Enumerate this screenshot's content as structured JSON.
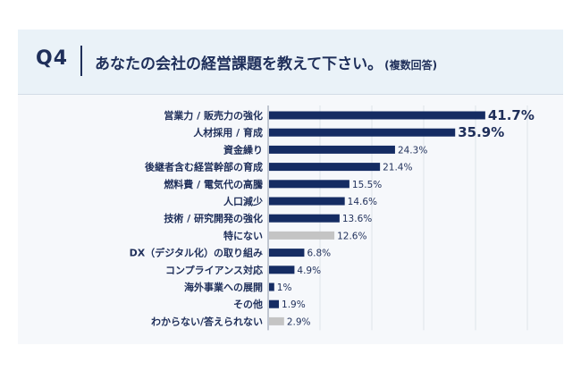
{
  "question": {
    "number": "Q4",
    "title": "あなたの会社の経営課題を教えて下さい。",
    "note": "(複数回答)"
  },
  "colors": {
    "navy": "#152c63",
    "gray": "#c4c4c4"
  },
  "chart_data": {
    "type": "bar",
    "orientation": "horizontal",
    "categories": [
      "営業力 / 販売力の強化",
      "人材採用 / 育成",
      "資金繰り",
      "後継者含む経営幹部の育成",
      "燃料費 / 電気代の高騰",
      "人口減少",
      "技術 / 研究開発の強化",
      "特にない",
      "DX（デジタル化）の取り組み",
      "コンプライアンス対応",
      "海外事業への展開",
      "その他",
      "わからない/答えられない"
    ],
    "values": [
      41.7,
      35.9,
      24.3,
      21.4,
      15.5,
      14.6,
      13.6,
      12.6,
      6.8,
      4.9,
      1,
      1.9,
      2.9
    ],
    "value_labels": [
      "41.7%",
      "35.9%",
      "24.3%",
      "21.4%",
      "15.5%",
      "14.6%",
      "13.6%",
      "12.6%",
      "6.8%",
      "4.9%",
      "1%",
      "1.9%",
      "2.9%"
    ],
    "highlight_top": 2,
    "bar_colors": [
      "navy",
      "navy",
      "navy",
      "navy",
      "navy",
      "navy",
      "navy",
      "gray",
      "navy",
      "navy",
      "navy",
      "navy",
      "gray"
    ],
    "xlim": [
      0,
      50
    ],
    "grid": true,
    "unit": "%"
  }
}
